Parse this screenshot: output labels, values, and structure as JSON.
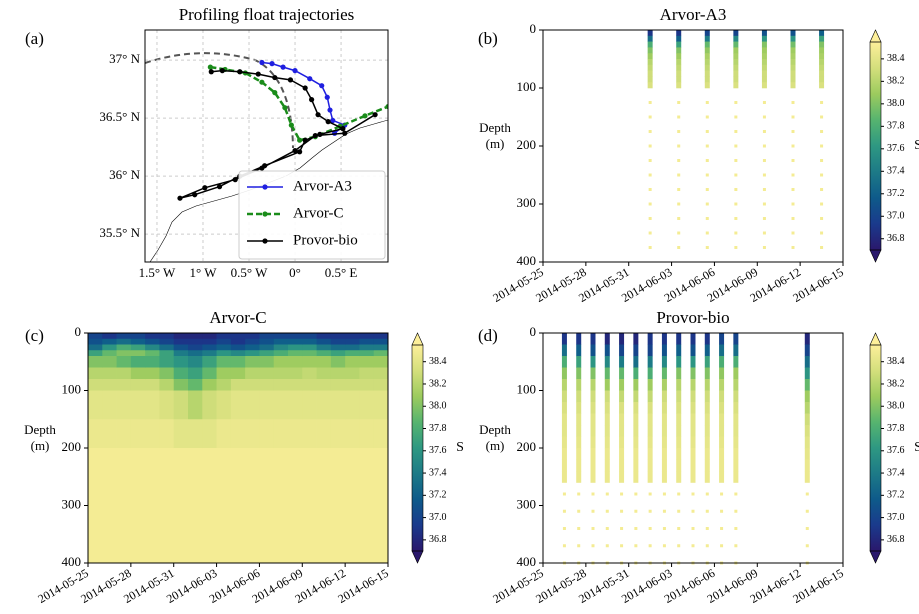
{
  "chart_data": [
    {
      "type": "line",
      "panel_label": "(a)",
      "title": "Profiling float trajectories",
      "xlim": [
        -1.63,
        1.01
      ],
      "ylim": [
        35.26,
        37.26
      ],
      "xticks": [
        {
          "value": -1.5,
          "label": "1.5° W"
        },
        {
          "value": -1,
          "label": "1° W"
        },
        {
          "value": -0.5,
          "label": "0.5° W"
        },
        {
          "value": 0,
          "label": "0°"
        },
        {
          "value": 0.5,
          "label": "0.5° E"
        }
      ],
      "yticks": [
        {
          "value": 35.5,
          "label": "35.5° N"
        },
        {
          "value": 36,
          "label": "36° N"
        },
        {
          "value": 36.5,
          "label": "36.5° N"
        },
        {
          "value": 37,
          "label": "37° N"
        }
      ],
      "grid": true,
      "legend": "lower right",
      "series": [
        {
          "name": "Arvor-A3",
          "color": "#1f1fe0",
          "linestyle": "solid",
          "x": [
            -0.36,
            -0.25,
            -0.13,
            0,
            0.16,
            0.29,
            0.35,
            0.38,
            0.41,
            0.54,
            0.43
          ],
          "y": [
            36.98,
            36.97,
            36.94,
            36.91,
            36.84,
            36.78,
            36.68,
            36.57,
            36.48,
            36.44,
            36.37
          ]
        },
        {
          "name": "Arvor-C",
          "color": "#1a8c1a",
          "linestyle": "dashed",
          "x": [
            -0.92,
            -0.76,
            -0.54,
            -0.36,
            -0.22,
            -0.11,
            -0.04,
            0.05,
            0.22,
            0.49,
            0.76,
            1.01
          ],
          "y": [
            36.94,
            36.92,
            36.89,
            36.81,
            36.72,
            36.59,
            36.44,
            36.31,
            36.34,
            36.43,
            36.52,
            36.6
          ]
        },
        {
          "name": "Provor-bio",
          "color": "#000000",
          "linestyle": "solid",
          "x": [
            -0.91,
            -0.79,
            -0.6,
            -0.4,
            -0.22,
            -0.05,
            0.11,
            0.18,
            0.25,
            0.36,
            0.52,
            0.27,
            0.11,
            0.05,
            -0.33,
            -0.6,
            -0.82,
            -1.09,
            -1.25,
            -0.98,
            -0.65,
            -0.36,
            0,
            0.22,
            0.54,
            0.87
          ],
          "y": [
            36.9,
            36.91,
            36.9,
            36.88,
            36.85,
            36.83,
            36.76,
            36.66,
            36.53,
            36.47,
            36.41,
            36.36,
            36.31,
            36.21,
            36.09,
            36.0,
            35.91,
            35.84,
            35.81,
            35.9,
            35.97,
            36.07,
            36.22,
            36.35,
            36.37,
            36.53
          ]
        }
      ]
    },
    {
      "type": "profile",
      "panel_label": "(b)",
      "title": "Arvor-A3",
      "ylabel": "Depth (m)",
      "xlim": [
        "2014-05-25",
        "2014-06-15"
      ],
      "xticks": [
        "2014-05-25",
        "2014-05-28",
        "2014-05-31",
        "2014-06-03",
        "2014-06-06",
        "2014-06-09",
        "2014-06-12",
        "2014-06-15"
      ],
      "ylim": [
        400,
        0
      ],
      "yticks": [
        0,
        100,
        200,
        300,
        400
      ],
      "x": [
        "2014-06-01",
        "2014-06-03",
        "2014-06-05",
        "2014-06-07",
        "2014-06-09",
        "2014-06-11",
        "2014-06-13"
      ],
      "depths": [
        5,
        15,
        25,
        35,
        45,
        55,
        65,
        75,
        85,
        95,
        125,
        150,
        175,
        200,
        225,
        250,
        275,
        300,
        325,
        350,
        375
      ],
      "values": [
        [
          36.9,
          37.3,
          37.8,
          38.0,
          38.1,
          38.2,
          38.25,
          38.3,
          38.3,
          38.35,
          38.5,
          38.5,
          38.5,
          38.5,
          38.5,
          38.5,
          38.5,
          38.5,
          38.5,
          38.5,
          38.5
        ],
        [
          36.9,
          37.2,
          37.7,
          38.0,
          38.1,
          38.2,
          38.25,
          38.3,
          38.3,
          38.35,
          38.5,
          38.5,
          38.5,
          38.5,
          38.5,
          38.5,
          38.5,
          38.5,
          38.5,
          38.5,
          38.5
        ],
        [
          37.0,
          37.4,
          37.9,
          38.05,
          38.15,
          38.2,
          38.25,
          38.3,
          38.3,
          38.35,
          38.5,
          38.5,
          38.5,
          38.5,
          38.5,
          38.5,
          38.5,
          38.5,
          38.5,
          38.5,
          38.5
        ],
        [
          37.0,
          37.5,
          37.9,
          38.1,
          38.15,
          38.2,
          38.25,
          38.3,
          38.3,
          38.35,
          38.5,
          38.5,
          38.5,
          38.5,
          38.5,
          38.5,
          38.5,
          38.5,
          38.5,
          38.5,
          38.5
        ],
        [
          37.1,
          37.6,
          38.0,
          38.1,
          38.15,
          38.2,
          38.25,
          38.3,
          38.3,
          38.35,
          38.5,
          38.5,
          38.5,
          38.5,
          38.5,
          38.5,
          38.5,
          38.5,
          38.5,
          38.5,
          38.5
        ],
        [
          37.1,
          37.6,
          37.95,
          38.1,
          38.15,
          38.2,
          38.25,
          38.3,
          38.3,
          38.35,
          38.5,
          38.5,
          38.5,
          38.5,
          38.5,
          38.5,
          38.5,
          38.5,
          38.5,
          38.5,
          38.5
        ],
        [
          37.2,
          37.7,
          38.0,
          38.1,
          38.15,
          38.2,
          38.25,
          38.3,
          38.3,
          38.35,
          38.5,
          38.5,
          38.5,
          38.5,
          38.5,
          38.5,
          38.5,
          38.5,
          38.5,
          38.5,
          38.5
        ]
      ],
      "colorbar": {
        "label": "S",
        "clim": [
          36.7,
          38.55
        ],
        "ticks": [
          36.8,
          {
            "value": 37,
            "label": "37.0"
          },
          37.2,
          37.4,
          37.6,
          37.8,
          {
            "value": 38,
            "label": "38.0"
          },
          38.2,
          38.4
        ],
        "colormap": [
          "#2a186c",
          "#1a3a8c",
          "#0e5a8a",
          "#1d7a87",
          "#2e9882",
          "#56b46f",
          "#9ccb5e",
          "#d4df7c",
          "#fdef9a"
        ]
      }
    },
    {
      "type": "heatmap",
      "panel_label": "(c)",
      "title": "Arvor-C",
      "ylabel": "Depth (m)",
      "xlim": [
        "2014-05-25",
        "2014-06-15"
      ],
      "xticks": [
        "2014-05-25",
        "2014-05-28",
        "2014-05-31",
        "2014-06-03",
        "2014-06-06",
        "2014-06-09",
        "2014-06-12",
        "2014-06-15"
      ],
      "ylim": [
        400,
        0
      ],
      "yticks": [
        0,
        100,
        200,
        300,
        400
      ],
      "x": [
        "2014-05-25",
        "2014-05-26",
        "2014-05-27",
        "2014-05-28",
        "2014-05-29",
        "2014-05-30",
        "2014-05-31",
        "2014-06-01",
        "2014-06-02",
        "2014-06-03",
        "2014-06-04",
        "2014-06-05",
        "2014-06-06",
        "2014-06-07",
        "2014-06-08",
        "2014-06-09",
        "2014-06-10",
        "2014-06-11",
        "2014-06-12",
        "2014-06-13",
        "2014-06-14"
      ],
      "depth_edges": [
        0,
        10,
        20,
        30,
        40,
        60,
        80,
        100,
        150,
        200,
        300,
        400
      ],
      "values": [
        [
          37.0,
          37.1,
          37.3,
          37.7,
          38.0,
          38.2,
          38.3,
          38.4,
          38.45,
          38.5,
          38.5
        ],
        [
          36.9,
          37.2,
          37.6,
          37.9,
          38.0,
          38.2,
          38.3,
          38.4,
          38.45,
          38.5,
          38.5
        ],
        [
          37.0,
          37.3,
          37.8,
          38.0,
          37.9,
          38.2,
          38.3,
          38.4,
          38.45,
          38.5,
          38.5
        ],
        [
          37.0,
          37.2,
          37.7,
          38.0,
          37.8,
          38.1,
          38.3,
          38.4,
          38.45,
          38.5,
          38.5
        ],
        [
          36.9,
          37.1,
          37.5,
          37.9,
          37.8,
          38.1,
          38.3,
          38.4,
          38.45,
          38.5,
          38.5
        ],
        [
          36.9,
          37.0,
          37.3,
          37.7,
          37.7,
          38.0,
          38.2,
          38.35,
          38.45,
          38.5,
          38.5
        ],
        [
          36.8,
          36.9,
          37.1,
          37.4,
          37.6,
          37.8,
          38.0,
          38.3,
          38.4,
          38.5,
          38.5
        ],
        [
          36.8,
          36.9,
          37.0,
          37.3,
          37.5,
          37.7,
          37.9,
          38.2,
          38.4,
          38.5,
          38.5
        ],
        [
          36.8,
          36.9,
          37.1,
          37.4,
          37.7,
          37.9,
          38.1,
          38.3,
          38.4,
          38.5,
          38.5
        ],
        [
          36.9,
          37.0,
          37.2,
          37.6,
          37.9,
          38.1,
          38.2,
          38.35,
          38.45,
          38.5,
          38.5
        ],
        [
          36.9,
          36.9,
          37.1,
          37.5,
          37.9,
          38.1,
          38.3,
          38.4,
          38.45,
          38.5,
          38.5
        ],
        [
          36.9,
          37.0,
          37.2,
          37.6,
          38.0,
          38.2,
          38.3,
          38.4,
          38.45,
          38.5,
          38.5
        ],
        [
          37.0,
          37.1,
          37.3,
          37.7,
          38.0,
          38.2,
          38.3,
          38.4,
          38.45,
          38.5,
          38.5
        ],
        [
          37.0,
          37.2,
          37.5,
          37.8,
          38.1,
          38.2,
          38.3,
          38.4,
          38.45,
          38.5,
          38.5
        ],
        [
          37.0,
          37.2,
          37.6,
          37.9,
          38.1,
          38.2,
          38.3,
          38.4,
          38.45,
          38.5,
          38.5
        ],
        [
          37.0,
          37.2,
          37.6,
          37.9,
          38.1,
          38.25,
          38.3,
          38.4,
          38.45,
          38.5,
          38.5
        ],
        [
          36.9,
          37.1,
          37.4,
          37.8,
          38.1,
          38.2,
          38.3,
          38.4,
          38.45,
          38.5,
          38.5
        ],
        [
          36.9,
          37.0,
          37.3,
          37.7,
          38.0,
          38.2,
          38.3,
          38.4,
          38.45,
          38.5,
          38.5
        ],
        [
          36.9,
          37.0,
          37.3,
          37.8,
          38.1,
          38.2,
          38.3,
          38.4,
          38.45,
          38.5,
          38.5
        ],
        [
          36.9,
          37.1,
          37.4,
          37.8,
          38.1,
          38.25,
          38.3,
          38.4,
          38.45,
          38.5,
          38.5
        ],
        [
          36.9,
          37.1,
          37.4,
          37.9,
          38.1,
          38.25,
          38.3,
          38.4,
          38.45,
          38.5,
          38.5
        ]
      ],
      "colorbar": {
        "label": "S",
        "clim": [
          36.7,
          38.55
        ],
        "ticks": [
          36.8,
          {
            "value": 37,
            "label": "37.0"
          },
          37.2,
          37.4,
          37.6,
          37.8,
          {
            "value": 38,
            "label": "38.0"
          },
          38.2,
          38.4
        ],
        "colormap": [
          "#2a186c",
          "#1a3a8c",
          "#0e5a8a",
          "#1d7a87",
          "#2e9882",
          "#56b46f",
          "#9ccb5e",
          "#d4df7c",
          "#fdef9a"
        ]
      }
    },
    {
      "type": "profile",
      "panel_label": "(d)",
      "title": "Provor-bio",
      "ylabel": "Depth (m)",
      "xlim": [
        "2014-05-25",
        "2014-06-15"
      ],
      "xticks": [
        "2014-05-25",
        "2014-05-28",
        "2014-05-31",
        "2014-06-03",
        "2014-06-06",
        "2014-06-09",
        "2014-06-12",
        "2014-06-15"
      ],
      "ylim": [
        400,
        0
      ],
      "yticks": [
        0,
        100,
        200,
        300,
        400
      ],
      "x": [
        "2014-05-26",
        "2014-05-27",
        "2014-05-28",
        "2014-05-29",
        "2014-05-30",
        "2014-05-31",
        "2014-06-01",
        "2014-06-02",
        "2014-06-03",
        "2014-06-04",
        "2014-06-05",
        "2014-06-06",
        "2014-06-07",
        "2014-06-12"
      ],
      "depths": [
        10,
        30,
        50,
        70,
        90,
        110,
        130,
        150,
        170,
        190,
        210,
        230,
        250,
        280,
        310,
        340,
        370,
        400
      ],
      "values": [
        [
          36.9,
          37.3,
          37.8,
          38.05,
          38.2,
          38.3,
          38.35,
          38.4,
          38.4,
          38.42,
          38.45,
          38.45,
          38.45,
          38.5,
          38.5,
          38.5,
          38.5,
          38.5
        ],
        [
          36.9,
          37.2,
          37.7,
          38.0,
          38.2,
          38.3,
          38.35,
          38.4,
          38.4,
          38.42,
          38.45,
          38.45,
          38.45,
          38.5,
          38.5,
          38.5,
          38.5,
          38.5
        ],
        [
          36.9,
          37.1,
          37.6,
          38.0,
          38.2,
          38.3,
          38.35,
          38.4,
          38.4,
          38.42,
          38.45,
          38.45,
          38.45,
          38.5,
          38.5,
          38.5,
          38.5,
          38.5
        ],
        [
          36.8,
          37.1,
          37.5,
          37.9,
          38.1,
          38.3,
          38.35,
          38.4,
          38.4,
          38.42,
          38.45,
          38.45,
          38.45,
          38.5,
          38.5,
          38.5,
          38.5,
          38.5
        ],
        [
          36.8,
          37.0,
          37.4,
          37.9,
          38.1,
          38.25,
          38.35,
          38.4,
          38.4,
          38.42,
          38.45,
          38.45,
          38.45,
          38.5,
          38.5,
          38.5,
          38.5,
          38.5
        ],
        [
          36.8,
          37.0,
          37.3,
          37.8,
          38.1,
          38.25,
          38.35,
          38.4,
          38.4,
          38.42,
          38.45,
          38.45,
          38.45,
          38.5,
          38.5,
          38.5,
          38.5,
          38.5
        ],
        [
          36.9,
          37.0,
          37.4,
          37.8,
          38.1,
          38.25,
          38.35,
          38.4,
          38.4,
          38.42,
          38.45,
          38.45,
          38.45,
          38.5,
          38.5,
          38.5,
          38.5,
          38.5
        ],
        [
          36.9,
          37.1,
          37.5,
          37.9,
          38.15,
          38.3,
          38.35,
          38.4,
          38.4,
          38.42,
          38.45,
          38.45,
          38.45,
          38.5,
          38.5,
          38.5,
          38.5,
          38.5
        ],
        [
          36.9,
          37.2,
          37.6,
          38.0,
          38.2,
          38.3,
          38.35,
          38.4,
          38.4,
          38.42,
          38.45,
          38.45,
          38.45,
          38.5,
          38.5,
          38.5,
          38.5,
          38.5
        ],
        [
          36.9,
          37.1,
          37.6,
          38.0,
          38.2,
          38.3,
          38.35,
          38.4,
          38.4,
          38.42,
          38.45,
          38.45,
          38.45,
          38.5,
          38.5,
          38.5,
          38.5,
          38.5
        ],
        [
          36.9,
          37.2,
          37.7,
          38.0,
          38.2,
          38.3,
          38.35,
          38.4,
          38.4,
          38.42,
          38.45,
          38.45,
          38.45,
          38.5,
          38.5,
          38.5,
          38.5,
          38.5
        ],
        [
          37.0,
          37.3,
          37.8,
          38.05,
          38.2,
          38.3,
          38.35,
          38.4,
          38.4,
          38.42,
          38.45,
          38.45,
          38.45,
          38.5,
          38.5,
          38.5,
          38.5,
          38.5
        ],
        [
          37.0,
          37.3,
          37.8,
          38.1,
          38.2,
          38.3,
          38.35,
          38.4,
          38.4,
          38.42,
          38.45,
          38.45,
          38.45,
          38.5,
          38.5,
          38.5,
          38.5,
          38.5
        ],
        [
          36.8,
          37.0,
          37.3,
          37.6,
          37.9,
          38.1,
          38.2,
          38.3,
          38.35,
          38.4,
          38.42,
          38.45,
          38.45,
          38.5,
          38.5,
          38.5,
          38.5,
          38.5
        ]
      ],
      "colorbar": {
        "label": "S",
        "clim": [
          36.7,
          38.55
        ],
        "ticks": [
          36.8,
          {
            "value": 37,
            "label": "37.0"
          },
          37.2,
          37.4,
          37.6,
          37.8,
          {
            "value": 38,
            "label": "38.0"
          },
          38.2,
          38.4
        ],
        "colormap": [
          "#2a186c",
          "#1a3a8c",
          "#0e5a8a",
          "#1d7a87",
          "#2e9882",
          "#56b46f",
          "#9ccb5e",
          "#d4df7c",
          "#fdef9a"
        ]
      }
    }
  ]
}
